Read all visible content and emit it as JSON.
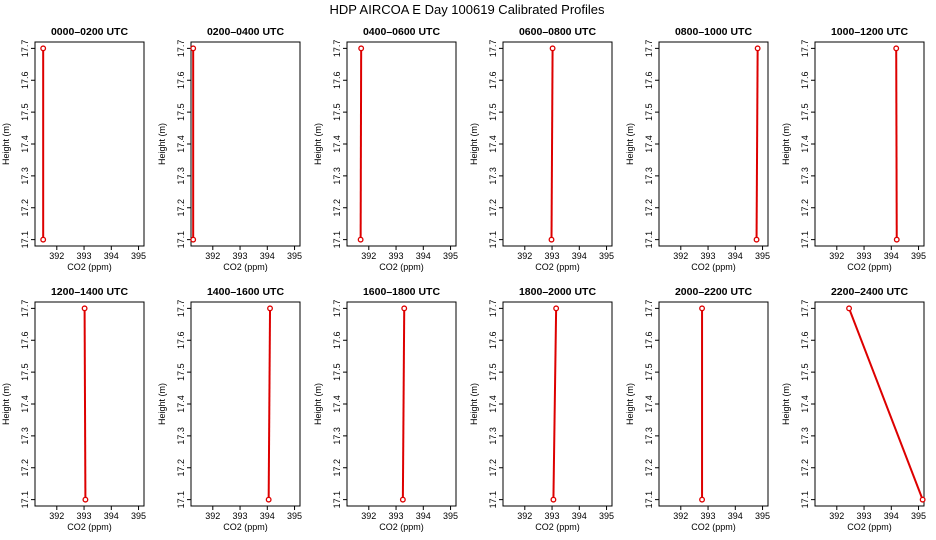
{
  "figure": {
    "title": "HDP AIRCOA E  Day 100619  Calibrated Profiles"
  },
  "chart_data": [
    {
      "type": "line",
      "title": "0000–0200 UTC",
      "xlabel": "CO2 (ppm)",
      "ylabel": "Height (m)",
      "xlim": [
        391.2,
        395.2
      ],
      "ylim": [
        17.08,
        17.72
      ],
      "x_ticks": [
        392,
        393,
        394,
        395
      ],
      "y_ticks": [
        17.1,
        17.2,
        17.3,
        17.4,
        17.5,
        17.6,
        17.7
      ],
      "series": [
        {
          "color": "#dd0000",
          "points": [
            [
              391.5,
              17.1
            ],
            [
              391.5,
              17.7
            ]
          ]
        }
      ]
    },
    {
      "type": "line",
      "title": "0200–0400 UTC",
      "xlabel": "CO2 (ppm)",
      "ylabel": "Height (m)",
      "xlim": [
        391.2,
        395.2
      ],
      "ylim": [
        17.08,
        17.72
      ],
      "x_ticks": [
        392,
        393,
        394,
        395
      ],
      "y_ticks": [
        17.1,
        17.2,
        17.3,
        17.4,
        17.5,
        17.6,
        17.7
      ],
      "series": [
        {
          "color": "#dd0000",
          "points": [
            [
              391.28,
              17.1
            ],
            [
              391.28,
              17.7
            ]
          ]
        }
      ]
    },
    {
      "type": "line",
      "title": "0400–0600 UTC",
      "xlabel": "CO2 (ppm)",
      "ylabel": "Height (m)",
      "xlim": [
        391.2,
        395.2
      ],
      "ylim": [
        17.08,
        17.72
      ],
      "x_ticks": [
        392,
        393,
        394,
        395
      ],
      "y_ticks": [
        17.1,
        17.2,
        17.3,
        17.4,
        17.5,
        17.6,
        17.7
      ],
      "series": [
        {
          "color": "#dd0000",
          "points": [
            [
              391.7,
              17.1
            ],
            [
              391.72,
              17.7
            ]
          ]
        }
      ]
    },
    {
      "type": "line",
      "title": "0600–0800 UTC",
      "xlabel": "CO2 (ppm)",
      "ylabel": "Height (m)",
      "xlim": [
        391.2,
        395.2
      ],
      "ylim": [
        17.08,
        17.72
      ],
      "x_ticks": [
        392,
        393,
        394,
        395
      ],
      "y_ticks": [
        17.1,
        17.2,
        17.3,
        17.4,
        17.5,
        17.6,
        17.7
      ],
      "series": [
        {
          "color": "#dd0000",
          "points": [
            [
              392.98,
              17.1
            ],
            [
              393.02,
              17.7
            ]
          ]
        }
      ]
    },
    {
      "type": "line",
      "title": "0800–1000 UTC",
      "xlabel": "CO2 (ppm)",
      "ylabel": "Height (m)",
      "xlim": [
        391.2,
        395.2
      ],
      "ylim": [
        17.08,
        17.72
      ],
      "x_ticks": [
        392,
        393,
        394,
        395
      ],
      "y_ticks": [
        17.1,
        17.2,
        17.3,
        17.4,
        17.5,
        17.6,
        17.7
      ],
      "series": [
        {
          "color": "#dd0000",
          "points": [
            [
              394.78,
              17.1
            ],
            [
              394.82,
              17.7
            ]
          ]
        }
      ]
    },
    {
      "type": "line",
      "title": "1000–1200 UTC",
      "xlabel": "CO2 (ppm)",
      "ylabel": "Height (m)",
      "xlim": [
        391.2,
        395.2
      ],
      "ylim": [
        17.08,
        17.72
      ],
      "x_ticks": [
        392,
        393,
        394,
        395
      ],
      "y_ticks": [
        17.1,
        17.2,
        17.3,
        17.4,
        17.5,
        17.6,
        17.7
      ],
      "series": [
        {
          "color": "#dd0000",
          "points": [
            [
              394.2,
              17.1
            ],
            [
              394.18,
              17.7
            ]
          ]
        }
      ]
    },
    {
      "type": "line",
      "title": "1200–1400 UTC",
      "xlabel": "CO2 (ppm)",
      "ylabel": "Height (m)",
      "xlim": [
        391.2,
        395.2
      ],
      "ylim": [
        17.08,
        17.72
      ],
      "x_ticks": [
        392,
        393,
        394,
        395
      ],
      "y_ticks": [
        17.1,
        17.2,
        17.3,
        17.4,
        17.5,
        17.6,
        17.7
      ],
      "series": [
        {
          "color": "#dd0000",
          "points": [
            [
              393.05,
              17.1
            ],
            [
              393.02,
              17.7
            ]
          ]
        }
      ]
    },
    {
      "type": "line",
      "title": "1400–1600 UTC",
      "xlabel": "CO2 (ppm)",
      "ylabel": "Height (m)",
      "xlim": [
        391.2,
        395.2
      ],
      "ylim": [
        17.08,
        17.72
      ],
      "x_ticks": [
        392,
        393,
        394,
        395
      ],
      "y_ticks": [
        17.1,
        17.2,
        17.3,
        17.4,
        17.5,
        17.6,
        17.7
      ],
      "series": [
        {
          "color": "#dd0000",
          "points": [
            [
              394.05,
              17.1
            ],
            [
              394.1,
              17.7
            ]
          ]
        }
      ]
    },
    {
      "type": "line",
      "title": "1600–1800 UTC",
      "xlabel": "CO2 (ppm)",
      "ylabel": "Height (m)",
      "xlim": [
        391.2,
        395.2
      ],
      "ylim": [
        17.08,
        17.72
      ],
      "x_ticks": [
        392,
        393,
        394,
        395
      ],
      "y_ticks": [
        17.1,
        17.2,
        17.3,
        17.4,
        17.5,
        17.6,
        17.7
      ],
      "series": [
        {
          "color": "#dd0000",
          "points": [
            [
              393.25,
              17.1
            ],
            [
              393.3,
              17.7
            ]
          ]
        }
      ]
    },
    {
      "type": "line",
      "title": "1800–2000 UTC",
      "xlabel": "CO2 (ppm)",
      "ylabel": "Height (m)",
      "xlim": [
        391.2,
        395.2
      ],
      "ylim": [
        17.08,
        17.72
      ],
      "x_ticks": [
        392,
        393,
        394,
        395
      ],
      "y_ticks": [
        17.1,
        17.2,
        17.3,
        17.4,
        17.5,
        17.6,
        17.7
      ],
      "series": [
        {
          "color": "#dd0000",
          "points": [
            [
              393.05,
              17.1
            ],
            [
              393.15,
              17.7
            ]
          ]
        }
      ]
    },
    {
      "type": "line",
      "title": "2000–2200 UTC",
      "xlabel": "CO2 (ppm)",
      "ylabel": "Height (m)",
      "xlim": [
        391.2,
        395.2
      ],
      "ylim": [
        17.08,
        17.72
      ],
      "x_ticks": [
        392,
        393,
        394,
        395
      ],
      "y_ticks": [
        17.1,
        17.2,
        17.3,
        17.4,
        17.5,
        17.6,
        17.7
      ],
      "series": [
        {
          "color": "#dd0000",
          "points": [
            [
              392.78,
              17.1
            ],
            [
              392.78,
              17.7
            ]
          ]
        }
      ]
    },
    {
      "type": "line",
      "title": "2200–2400 UTC",
      "xlabel": "CO2 (ppm)",
      "ylabel": "Height (m)",
      "xlim": [
        391.2,
        395.2
      ],
      "ylim": [
        17.08,
        17.72
      ],
      "x_ticks": [
        392,
        393,
        394,
        395
      ],
      "y_ticks": [
        17.1,
        17.2,
        17.3,
        17.4,
        17.5,
        17.6,
        17.7
      ],
      "series": [
        {
          "color": "#dd0000",
          "points": [
            [
              395.15,
              17.1
            ],
            [
              392.45,
              17.7
            ]
          ]
        }
      ]
    }
  ]
}
